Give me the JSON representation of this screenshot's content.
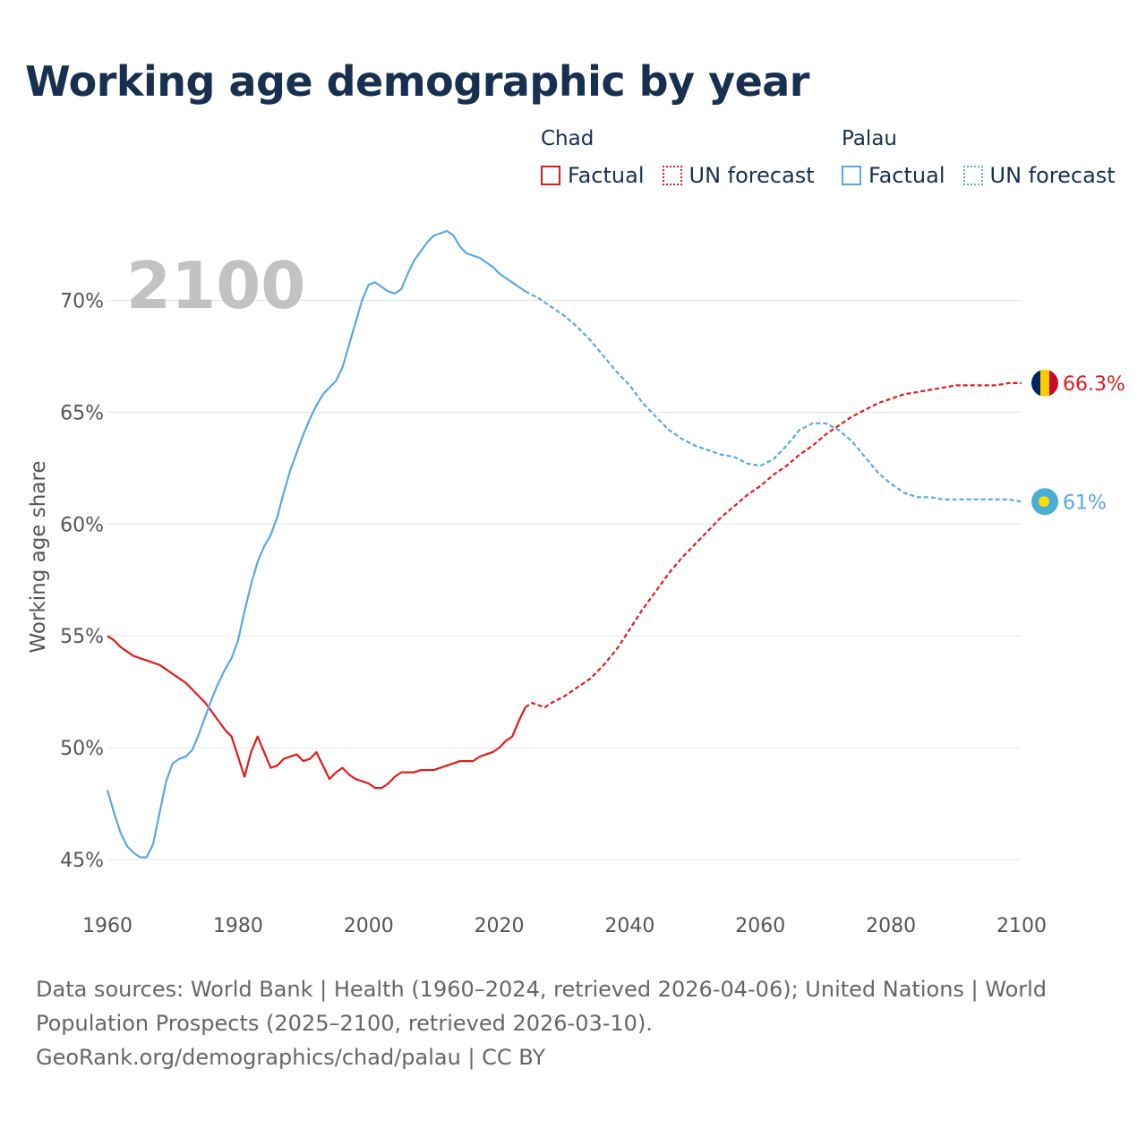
{
  "title": "Working age demographic by year",
  "legend": [
    {
      "group": "Chad",
      "items": [
        {
          "label": "Factual",
          "style": "solid"
        },
        {
          "label": "UN forecast",
          "style": "dotted"
        }
      ],
      "color": "#e31a1c"
    },
    {
      "group": "Palau",
      "items": [
        {
          "label": "Factual",
          "style": "solid"
        },
        {
          "label": "UN forecast",
          "style": "dotted"
        }
      ],
      "color": "#5ba6e6"
    }
  ],
  "sources": {
    "line1": "Data sources: World Bank | Health (1960–2024, retrieved 2026-04-06); United Nations | World Population Prospects (2025–2100, retrieved 2026-03-10).",
    "line2": "GeoRank.org/demographics/chad/palau | CC BY"
  },
  "chart_data": {
    "type": "line",
    "title": "Working age demographic by year",
    "year_label": "2100",
    "ylabel": "Working age share",
    "xlabel": "",
    "xlim": [
      1960,
      2100
    ],
    "ylim": [
      44,
      73.5
    ],
    "x_ticks": [
      1960,
      1980,
      2000,
      2020,
      2040,
      2060,
      2080,
      2100
    ],
    "y_ticks": [
      45,
      50,
      55,
      60,
      65,
      70
    ],
    "y_tick_labels": [
      "45%",
      "50%",
      "55%",
      "60%",
      "65%",
      "70%"
    ],
    "factual_end_year": 2024,
    "series": [
      {
        "name": "Chad",
        "color": "#e31a1c",
        "end_label": "66.3%",
        "flag": [
          "#002664",
          "#fecb00",
          "#c60c30"
        ],
        "x": [
          1960,
          1961,
          1962,
          1963,
          1964,
          1965,
          1966,
          1967,
          1968,
          1969,
          1970,
          1971,
          1972,
          1973,
          1974,
          1975,
          1976,
          1977,
          1978,
          1979,
          1980,
          1981,
          1982,
          1983,
          1984,
          1985,
          1986,
          1987,
          1988,
          1989,
          1990,
          1991,
          1992,
          1993,
          1994,
          1995,
          1996,
          1997,
          1998,
          1999,
          2000,
          2001,
          2002,
          2003,
          2004,
          2005,
          2006,
          2007,
          2008,
          2009,
          2010,
          2011,
          2012,
          2013,
          2014,
          2015,
          2016,
          2017,
          2018,
          2019,
          2020,
          2021,
          2022,
          2023,
          2024,
          2025,
          2026,
          2027,
          2028,
          2030,
          2032,
          2034,
          2036,
          2038,
          2040,
          2042,
          2044,
          2046,
          2048,
          2050,
          2052,
          2054,
          2056,
          2058,
          2060,
          2062,
          2064,
          2066,
          2068,
          2070,
          2072,
          2074,
          2076,
          2078,
          2080,
          2082,
          2084,
          2086,
          2088,
          2090,
          2092,
          2094,
          2096,
          2098,
          2100
        ],
        "values": [
          55.0,
          54.8,
          54.5,
          54.3,
          54.1,
          54.0,
          53.9,
          53.8,
          53.7,
          53.5,
          53.3,
          53.1,
          52.9,
          52.6,
          52.3,
          52.0,
          51.6,
          51.2,
          50.8,
          50.5,
          49.6,
          48.7,
          49.8,
          50.5,
          49.8,
          49.1,
          49.2,
          49.5,
          49.6,
          49.7,
          49.4,
          49.5,
          49.8,
          49.2,
          48.6,
          48.9,
          49.1,
          48.8,
          48.6,
          48.5,
          48.4,
          48.2,
          48.2,
          48.4,
          48.7,
          48.9,
          48.9,
          48.9,
          49.0,
          49.0,
          49.0,
          49.1,
          49.2,
          49.3,
          49.4,
          49.4,
          49.4,
          49.6,
          49.7,
          49.8,
          50.0,
          50.3,
          50.5,
          51.2,
          51.8,
          52.0,
          51.9,
          51.8,
          52.0,
          52.3,
          52.7,
          53.1,
          53.7,
          54.4,
          55.3,
          56.2,
          57.0,
          57.8,
          58.5,
          59.1,
          59.7,
          60.3,
          60.8,
          61.3,
          61.7,
          62.2,
          62.6,
          63.1,
          63.5,
          64.0,
          64.4,
          64.8,
          65.1,
          65.4,
          65.6,
          65.8,
          65.9,
          66.0,
          66.1,
          66.2,
          66.2,
          66.2,
          66.2,
          66.3,
          66.3
        ]
      },
      {
        "name": "Palau",
        "color": "#5ba6e6",
        "end_label": "61%",
        "flag": [
          "#4aadd6",
          "#ffde00"
        ],
        "x": [
          1960,
          1961,
          1962,
          1963,
          1964,
          1965,
          1966,
          1967,
          1968,
          1969,
          1970,
          1971,
          1972,
          1973,
          1974,
          1975,
          1976,
          1977,
          1978,
          1979,
          1980,
          1981,
          1982,
          1983,
          1984,
          1985,
          1986,
          1987,
          1988,
          1989,
          1990,
          1991,
          1992,
          1993,
          1994,
          1995,
          1996,
          1997,
          1998,
          1999,
          2000,
          2001,
          2002,
          2003,
          2004,
          2005,
          2006,
          2007,
          2008,
          2009,
          2010,
          2011,
          2012,
          2013,
          2014,
          2015,
          2016,
          2017,
          2018,
          2019,
          2020,
          2021,
          2022,
          2023,
          2024,
          2026,
          2028,
          2030,
          2032,
          2034,
          2036,
          2038,
          2040,
          2042,
          2044,
          2046,
          2048,
          2050,
          2052,
          2054,
          2056,
          2058,
          2060,
          2062,
          2064,
          2066,
          2068,
          2070,
          2072,
          2074,
          2076,
          2078,
          2080,
          2082,
          2084,
          2086,
          2088,
          2090,
          2092,
          2094,
          2096,
          2098,
          2100
        ],
        "values": [
          48.1,
          47.1,
          46.2,
          45.6,
          45.3,
          45.1,
          45.1,
          45.7,
          47.1,
          48.5,
          49.3,
          49.5,
          49.6,
          49.9,
          50.6,
          51.4,
          52.2,
          52.9,
          53.5,
          54.0,
          54.8,
          56.1,
          57.3,
          58.3,
          59.0,
          59.5,
          60.3,
          61.4,
          62.4,
          63.2,
          64.0,
          64.7,
          65.3,
          65.8,
          66.1,
          66.4,
          67.0,
          68.0,
          69.0,
          70.0,
          70.7,
          70.8,
          70.6,
          70.4,
          70.3,
          70.5,
          71.2,
          71.8,
          72.2,
          72.6,
          72.9,
          73.0,
          73.1,
          72.9,
          72.4,
          72.1,
          72.0,
          71.9,
          71.7,
          71.5,
          71.2,
          71.0,
          70.8,
          70.6,
          70.4,
          70.1,
          69.7,
          69.3,
          68.8,
          68.2,
          67.5,
          66.8,
          66.2,
          65.4,
          64.8,
          64.2,
          63.8,
          63.5,
          63.3,
          63.1,
          63.0,
          62.7,
          62.6,
          62.9,
          63.5,
          64.2,
          64.5,
          64.5,
          64.2,
          63.7,
          63.0,
          62.3,
          61.8,
          61.4,
          61.2,
          61.2,
          61.1,
          61.1,
          61.1,
          61.1,
          61.1,
          61.1,
          61.0
        ]
      }
    ]
  }
}
